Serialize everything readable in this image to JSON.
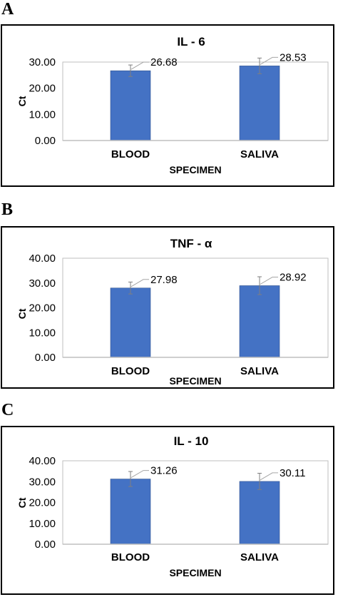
{
  "colors": {
    "bar": "#4472C4",
    "bar_edge": "#2F528F",
    "error_bar": "#7f7f7f",
    "leader": "#a6a6a6",
    "axis": "#bfbfbf"
  },
  "panels": [
    {
      "letter": "A"
    },
    {
      "letter": "B"
    },
    {
      "letter": "C"
    }
  ],
  "chart_data": [
    {
      "type": "bar",
      "title": "IL - 6",
      "xlabel": "SPECIMEN",
      "ylabel": "Ct",
      "categories": [
        "BLOOD",
        "SALIVA"
      ],
      "values": [
        26.68,
        28.53
      ],
      "data_labels": [
        "26.68",
        "28.53"
      ],
      "error": [
        2.2,
        3.0
      ],
      "ylim": [
        0,
        30
      ],
      "yticks": [
        "0.00",
        "10.00",
        "20.00",
        "30.00"
      ],
      "grid": false,
      "legend": "none"
    },
    {
      "type": "bar",
      "title": "TNF - α",
      "xlabel": "SPECIMEN",
      "ylabel": "Ct",
      "categories": [
        "BLOOD",
        "SALIVA"
      ],
      "values": [
        27.98,
        28.92
      ],
      "data_labels": [
        "27.98",
        "28.92"
      ],
      "error": [
        2.4,
        3.6
      ],
      "ylim": [
        0,
        40
      ],
      "yticks": [
        "0.00",
        "10.00",
        "20.00",
        "30.00",
        "40.00"
      ],
      "grid": false,
      "legend": "none"
    },
    {
      "type": "bar",
      "title": "IL - 10",
      "xlabel": "SPECIMEN",
      "ylabel": "Ct",
      "categories": [
        "BLOOD",
        "SALIVA"
      ],
      "values": [
        31.26,
        30.11
      ],
      "data_labels": [
        "31.26",
        "30.11"
      ],
      "error": [
        3.6,
        3.9
      ],
      "ylim": [
        0,
        40
      ],
      "yticks": [
        "0.00",
        "10.00",
        "20.00",
        "30.00",
        "40.00"
      ],
      "grid": false,
      "legend": "none"
    }
  ]
}
